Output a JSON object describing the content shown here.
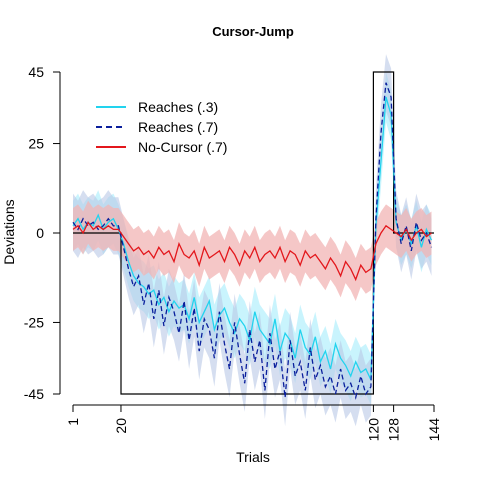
{
  "chart_data": {
    "type": "line",
    "title": "Cursor-Jump",
    "xlabel": "Trials",
    "ylabel": "Deviations",
    "xlim": [
      1,
      144
    ],
    "ylim": [
      -45,
      45
    ],
    "x_ticks": [
      "1",
      "20",
      "120",
      "128",
      "144"
    ],
    "y_ticks": [
      "45",
      "25",
      "0",
      "-25",
      "-45"
    ],
    "grid": false,
    "legend_position": "top-left",
    "perturbation_schedule": [
      {
        "trial": 1,
        "rotation": 0
      },
      {
        "trial": 20,
        "rotation": 0
      },
      {
        "trial": 20,
        "rotation": -45
      },
      {
        "trial": 120,
        "rotation": -45
      },
      {
        "trial": 120,
        "rotation": 45
      },
      {
        "trial": 128,
        "rotation": 45
      },
      {
        "trial": 128,
        "rotation": 0
      },
      {
        "trial": 144,
        "rotation": 0
      }
    ],
    "series": [
      {
        "name": "Reaches (.3)",
        "color": "#22d3ee",
        "band_color": "#a5ecfb",
        "line_style": "solid",
        "x": [
          1,
          3,
          5,
          7,
          9,
          11,
          13,
          15,
          17,
          19,
          21,
          23,
          25,
          27,
          29,
          31,
          33,
          35,
          37,
          39,
          41,
          43,
          45,
          47,
          49,
          51,
          53,
          55,
          57,
          59,
          61,
          63,
          65,
          67,
          69,
          71,
          73,
          75,
          77,
          79,
          81,
          83,
          85,
          87,
          89,
          91,
          93,
          95,
          97,
          99,
          101,
          103,
          105,
          107,
          109,
          111,
          113,
          115,
          117,
          119,
          121,
          123,
          125,
          127,
          129,
          131,
          133,
          135,
          137,
          139,
          141,
          143
        ],
        "y": [
          2,
          4,
          1,
          3,
          2,
          5,
          1,
          3,
          4,
          1,
          -3,
          -8,
          -12,
          -14,
          -15,
          -17,
          -16,
          -20,
          -18,
          -22,
          -19,
          -21,
          -20,
          -24,
          -18,
          -25,
          -22,
          -19,
          -27,
          -23,
          -21,
          -25,
          -28,
          -24,
          -26,
          -30,
          -22,
          -27,
          -29,
          -31,
          -24,
          -33,
          -28,
          -30,
          -35,
          -27,
          -32,
          -34,
          -29,
          -36,
          -33,
          -38,
          -31,
          -35,
          -37,
          -40,
          -36,
          -39,
          -38,
          -41,
          2,
          20,
          38,
          33,
          3,
          -2,
          1,
          -3,
          2,
          -4,
          1,
          -2
        ],
        "band_half_width": 7
      },
      {
        "name": "Reaches (.7)",
        "color": "#0a1f9c",
        "band_color": "#b9c8e6",
        "line_style": "dashed",
        "x": [
          1,
          3,
          5,
          7,
          9,
          11,
          13,
          15,
          17,
          19,
          21,
          23,
          25,
          27,
          29,
          31,
          33,
          35,
          37,
          39,
          41,
          43,
          45,
          47,
          49,
          51,
          53,
          55,
          57,
          59,
          61,
          63,
          65,
          67,
          69,
          71,
          73,
          75,
          77,
          79,
          81,
          83,
          85,
          87,
          89,
          91,
          93,
          95,
          97,
          99,
          101,
          103,
          105,
          107,
          109,
          111,
          113,
          115,
          117,
          119,
          121,
          123,
          125,
          127,
          129,
          131,
          133,
          135,
          137,
          139,
          141,
          143
        ],
        "y": [
          3,
          1,
          4,
          2,
          3,
          1,
          2,
          4,
          2,
          2,
          -4,
          -10,
          -15,
          -12,
          -20,
          -14,
          -24,
          -16,
          -26,
          -18,
          -22,
          -28,
          -19,
          -30,
          -21,
          -33,
          -24,
          -27,
          -35,
          -22,
          -31,
          -38,
          -25,
          -34,
          -42,
          -27,
          -36,
          -30,
          -44,
          -28,
          -38,
          -33,
          -46,
          -30,
          -40,
          -36,
          -44,
          -32,
          -41,
          -37,
          -43,
          -40,
          -45,
          -38,
          -44,
          -42,
          -46,
          -40,
          -45,
          -43,
          4,
          28,
          42,
          38,
          4,
          -3,
          2,
          -5,
          3,
          -2,
          0,
          -4
        ],
        "band_half_width": 8
      },
      {
        "name": "No-Cursor (.7)",
        "color": "#e3171c",
        "band_color": "#f2b4b4",
        "line_style": "solid",
        "x": [
          1,
          3,
          5,
          7,
          9,
          11,
          13,
          15,
          17,
          19,
          21,
          23,
          25,
          27,
          29,
          31,
          33,
          35,
          37,
          39,
          41,
          43,
          45,
          47,
          49,
          51,
          53,
          55,
          57,
          59,
          61,
          63,
          65,
          67,
          69,
          71,
          73,
          75,
          77,
          79,
          81,
          83,
          85,
          87,
          89,
          91,
          93,
          95,
          97,
          99,
          101,
          103,
          105,
          107,
          109,
          111,
          113,
          115,
          117,
          119,
          121,
          123,
          125,
          127,
          129,
          131,
          133,
          135,
          137,
          139,
          141,
          143
        ],
        "y": [
          1,
          2,
          0,
          3,
          1,
          2,
          1,
          2,
          1,
          1,
          -1,
          -3,
          -5,
          -4,
          -6,
          -5,
          -7,
          -4,
          -6,
          -5,
          -8,
          -3,
          -6,
          -7,
          -5,
          -9,
          -4,
          -7,
          -6,
          -5,
          -8,
          -4,
          -6,
          -9,
          -5,
          -7,
          -4,
          -8,
          -6,
          -5,
          -7,
          -4,
          -8,
          -5,
          -6,
          -9,
          -5,
          -7,
          -6,
          -8,
          -10,
          -7,
          -9,
          -12,
          -8,
          -10,
          -13,
          -9,
          -11,
          -10,
          -3,
          0,
          2,
          1,
          0,
          -1,
          1,
          -2,
          0,
          1,
          -1,
          0
        ],
        "band_half_width": 6
      }
    ]
  }
}
